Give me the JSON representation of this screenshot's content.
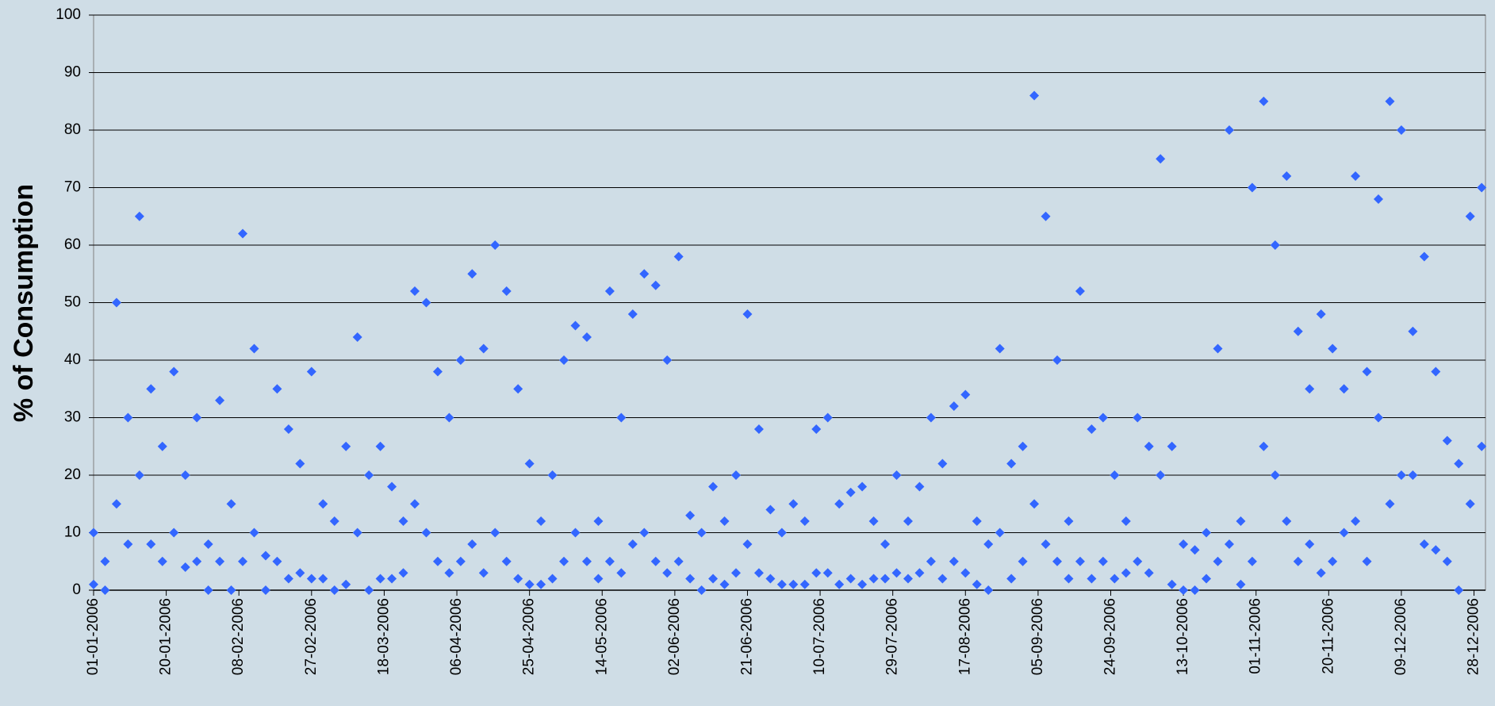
{
  "chart_data": {
    "type": "scatter",
    "ylabel": "% of Consumption",
    "color": "#3366ff",
    "ylim": [
      0,
      100
    ],
    "yticks": [
      0,
      10,
      20,
      30,
      40,
      50,
      60,
      70,
      80,
      90,
      100
    ],
    "grid": true,
    "xlim": [
      "01-01-2006",
      "31-12-2006"
    ],
    "xticks": [
      "01-01-2006",
      "20-01-2006",
      "08-02-2006",
      "27-02-2006",
      "18-03-2006",
      "06-04-2006",
      "25-04-2006",
      "14-05-2006",
      "02-06-2006",
      "21-06-2006",
      "10-07-2006",
      "29-07-2006",
      "17-08-2006",
      "05-09-2006",
      "24-09-2006",
      "13-10-2006",
      "01-11-2006",
      "20-11-2006",
      "09-12-2006",
      "28-12-2006"
    ],
    "x": [
      "01-01-2006",
      "01-01-2006",
      "04-01-2006",
      "04-01-2006",
      "07-01-2006",
      "07-01-2006",
      "10-01-2006",
      "10-01-2006",
      "13-01-2006",
      "13-01-2006",
      "16-01-2006",
      "16-01-2006",
      "19-01-2006",
      "19-01-2006",
      "22-01-2006",
      "22-01-2006",
      "25-01-2006",
      "25-01-2006",
      "28-01-2006",
      "28-01-2006",
      "31-01-2006",
      "31-01-2006",
      "03-02-2006",
      "03-02-2006",
      "06-02-2006",
      "06-02-2006",
      "09-02-2006",
      "09-02-2006",
      "12-02-2006",
      "12-02-2006",
      "15-02-2006",
      "15-02-2006",
      "18-02-2006",
      "18-02-2006",
      "21-02-2006",
      "21-02-2006",
      "24-02-2006",
      "24-02-2006",
      "27-02-2006",
      "27-02-2006",
      "02-03-2006",
      "02-03-2006",
      "05-03-2006",
      "05-03-2006",
      "08-03-2006",
      "08-03-2006",
      "11-03-2006",
      "11-03-2006",
      "14-03-2006",
      "14-03-2006",
      "17-03-2006",
      "17-03-2006",
      "20-03-2006",
      "20-03-2006",
      "23-03-2006",
      "23-03-2006",
      "26-03-2006",
      "26-03-2006",
      "29-03-2006",
      "29-03-2006",
      "01-04-2006",
      "01-04-2006",
      "04-04-2006",
      "04-04-2006",
      "07-04-2006",
      "07-04-2006",
      "10-04-2006",
      "10-04-2006",
      "13-04-2006",
      "13-04-2006",
      "16-04-2006",
      "16-04-2006",
      "19-04-2006",
      "19-04-2006",
      "22-04-2006",
      "22-04-2006",
      "25-04-2006",
      "25-04-2006",
      "28-04-2006",
      "28-04-2006",
      "01-05-2006",
      "01-05-2006",
      "04-05-2006",
      "04-05-2006",
      "07-05-2006",
      "07-05-2006",
      "10-05-2006",
      "10-05-2006",
      "13-05-2006",
      "13-05-2006",
      "16-05-2006",
      "16-05-2006",
      "19-05-2006",
      "19-05-2006",
      "22-05-2006",
      "22-05-2006",
      "25-05-2006",
      "25-05-2006",
      "28-05-2006",
      "28-05-2006",
      "31-05-2006",
      "31-05-2006",
      "03-06-2006",
      "03-06-2006",
      "06-06-2006",
      "06-06-2006",
      "09-06-2006",
      "09-06-2006",
      "12-06-2006",
      "12-06-2006",
      "15-06-2006",
      "15-06-2006",
      "18-06-2006",
      "18-06-2006",
      "21-06-2006",
      "21-06-2006",
      "24-06-2006",
      "24-06-2006",
      "27-06-2006",
      "27-06-2006",
      "30-06-2006",
      "30-06-2006",
      "03-07-2006",
      "03-07-2006",
      "06-07-2006",
      "06-07-2006",
      "09-07-2006",
      "09-07-2006",
      "12-07-2006",
      "12-07-2006",
      "15-07-2006",
      "15-07-2006",
      "18-07-2006",
      "18-07-2006",
      "21-07-2006",
      "21-07-2006",
      "24-07-2006",
      "24-07-2006",
      "27-07-2006",
      "27-07-2006",
      "30-07-2006",
      "30-07-2006",
      "02-08-2006",
      "02-08-2006",
      "05-08-2006",
      "05-08-2006",
      "08-08-2006",
      "08-08-2006",
      "11-08-2006",
      "11-08-2006",
      "14-08-2006",
      "14-08-2006",
      "17-08-2006",
      "17-08-2006",
      "20-08-2006",
      "20-08-2006",
      "23-08-2006",
      "23-08-2006",
      "26-08-2006",
      "26-08-2006",
      "29-08-2006",
      "29-08-2006",
      "01-09-2006",
      "01-09-2006",
      "04-09-2006",
      "04-09-2006",
      "07-09-2006",
      "07-09-2006",
      "10-09-2006",
      "10-09-2006",
      "13-09-2006",
      "13-09-2006",
      "16-09-2006",
      "16-09-2006",
      "19-09-2006",
      "19-09-2006",
      "22-09-2006",
      "22-09-2006",
      "25-09-2006",
      "25-09-2006",
      "28-09-2006",
      "28-09-2006",
      "01-10-2006",
      "01-10-2006",
      "04-10-2006",
      "04-10-2006",
      "07-10-2006",
      "07-10-2006",
      "10-10-2006",
      "10-10-2006",
      "13-10-2006",
      "13-10-2006",
      "16-10-2006",
      "16-10-2006",
      "19-10-2006",
      "19-10-2006",
      "22-10-2006",
      "22-10-2006",
      "25-10-2006",
      "25-10-2006",
      "28-10-2006",
      "28-10-2006",
      "31-10-2006",
      "31-10-2006",
      "03-11-2006",
      "03-11-2006",
      "06-11-2006",
      "06-11-2006",
      "09-11-2006",
      "09-11-2006",
      "12-11-2006",
      "12-11-2006",
      "15-11-2006",
      "15-11-2006",
      "18-11-2006",
      "18-11-2006",
      "21-11-2006",
      "21-11-2006",
      "24-11-2006",
      "24-11-2006",
      "27-11-2006",
      "27-11-2006",
      "30-11-2006",
      "30-11-2006",
      "03-12-2006",
      "03-12-2006",
      "06-12-2006",
      "06-12-2006",
      "09-12-2006",
      "09-12-2006",
      "12-12-2006",
      "12-12-2006",
      "15-12-2006",
      "15-12-2006",
      "18-12-2006",
      "18-12-2006",
      "21-12-2006",
      "21-12-2006",
      "24-12-2006",
      "24-12-2006",
      "27-12-2006",
      "27-12-2006",
      "30-12-2006",
      "30-12-2006"
    ],
    "values": [
      10,
      1,
      5,
      0,
      50,
      15,
      30,
      8,
      65,
      20,
      35,
      8,
      25,
      5,
      38,
      10,
      20,
      4,
      30,
      5,
      8,
      0,
      33,
      5,
      15,
      0,
      62,
      5,
      42,
      10,
      6,
      0,
      35,
      5,
      28,
      2,
      22,
      3,
      38,
      2,
      15,
      2,
      12,
      0,
      25,
      1,
      44,
      10,
      20,
      0,
      25,
      2,
      18,
      2,
      12,
      3,
      52,
      15,
      50,
      10,
      38,
      5,
      30,
      3,
      40,
      5,
      55,
      8,
      42,
      3,
      60,
      10,
      52,
      5,
      35,
      2,
      22,
      1,
      12,
      1,
      20,
      2,
      40,
      5,
      46,
      10,
      44,
      5,
      12,
      2,
      52,
      5,
      30,
      3,
      48,
      8,
      55,
      10,
      53,
      5,
      40,
      3,
      58,
      5,
      13,
      2,
      10,
      0,
      18,
      2,
      12,
      1,
      20,
      3,
      48,
      8,
      28,
      3,
      14,
      2,
      10,
      1,
      15,
      1,
      12,
      1,
      28,
      3,
      30,
      3,
      15,
      1,
      17,
      2,
      18,
      1,
      12,
      2,
      8,
      2,
      20,
      3,
      12,
      2,
      18,
      3,
      30,
      5,
      22,
      2,
      32,
      5,
      34,
      3,
      12,
      1,
      8,
      0,
      42,
      10,
      22,
      2,
      25,
      5,
      86,
      15,
      65,
      8,
      40,
      5,
      12,
      2,
      52,
      5,
      28,
      2,
      30,
      5,
      20,
      2,
      12,
      3,
      30,
      5,
      25,
      3,
      75,
      20,
      25,
      1,
      8,
      0,
      7,
      0,
      10,
      2,
      42,
      5,
      80,
      8,
      12,
      1,
      70,
      5,
      85,
      25,
      60,
      20,
      72,
      12,
      45,
      5,
      35,
      8,
      48,
      3,
      42,
      5,
      35,
      10,
      72,
      12,
      38,
      5,
      68,
      30,
      85,
      15,
      80,
      20,
      45,
      20,
      58,
      8,
      38,
      7,
      26,
      5,
      22,
      0,
      65,
      15,
      70,
      25
    ]
  }
}
